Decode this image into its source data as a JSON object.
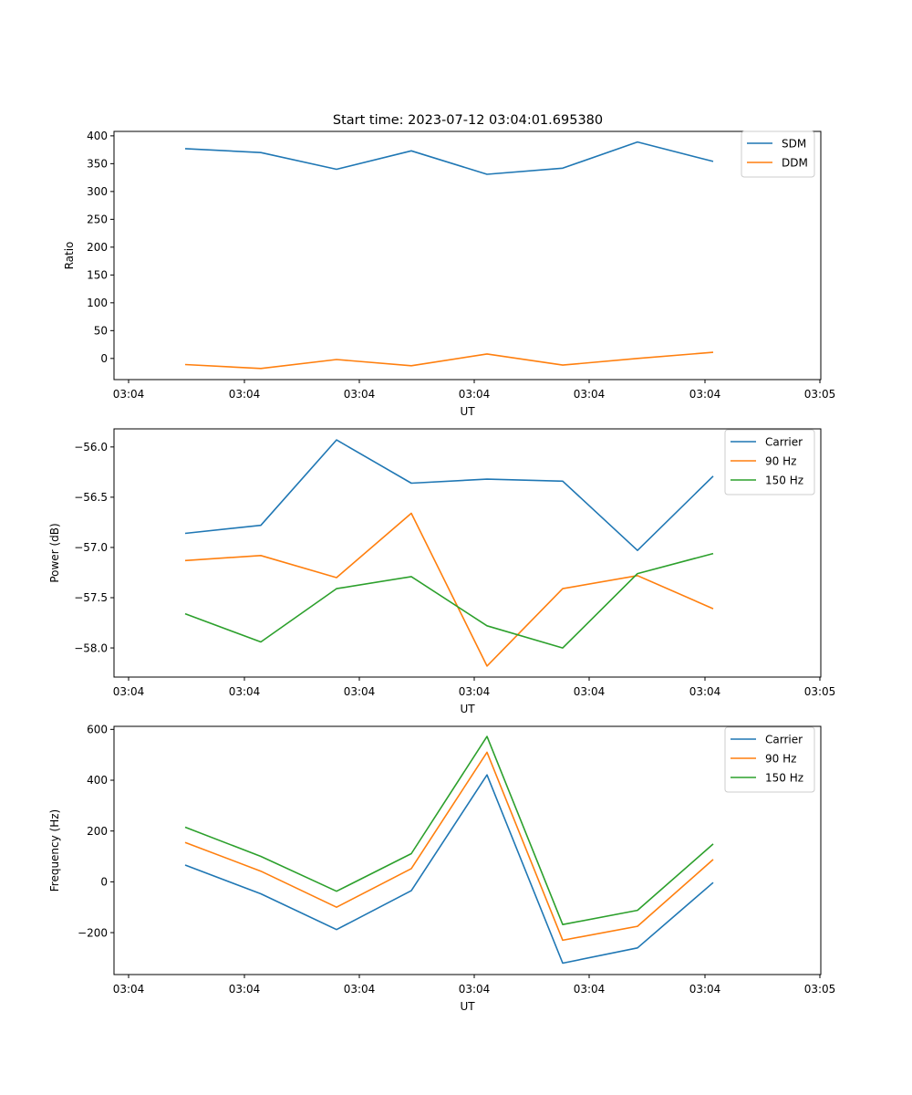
{
  "figure_title": "Start time: 2023-07-12 03:04:01.695380",
  "chart_data": [
    {
      "type": "line",
      "title": "Start time: 2023-07-12 03:04:01.695380",
      "xlabel": "UT",
      "ylabel": "Ratio",
      "x_tick_labels": [
        "03:04",
        "03:04",
        "03:04",
        "03:04",
        "03:04",
        "03:04",
        "03:05"
      ],
      "y_ticks": [
        0,
        50,
        100,
        150,
        200,
        250,
        300,
        350,
        400
      ],
      "y_tick_labels": [
        "0",
        "50",
        "100",
        "150",
        "200",
        "250",
        "300",
        "350",
        "400"
      ],
      "ylim": [
        -38,
        408
      ],
      "x_index_range": [
        -0.75,
        8.5
      ],
      "legend": "top-right",
      "grid": false,
      "series": [
        {
          "name": "SDM",
          "color": "#1f77b4",
          "values": [
            377,
            370,
            340,
            373,
            331,
            342,
            389,
            354
          ]
        },
        {
          "name": "DDM",
          "color": "#ff7f0e",
          "values": [
            -11,
            -18,
            -2,
            -13,
            8,
            -12,
            0,
            11
          ]
        }
      ]
    },
    {
      "type": "line",
      "title": "",
      "xlabel": "UT",
      "ylabel": "Power (dB)",
      "x_tick_labels": [
        "03:04",
        "03:04",
        "03:04",
        "03:04",
        "03:04",
        "03:04",
        "03:05"
      ],
      "y_ticks": [
        -58.0,
        -57.5,
        -57.0,
        -56.5,
        -56.0
      ],
      "y_tick_labels": [
        "−58.0",
        "−57.5",
        "−57.0",
        "−56.5",
        "−56.0"
      ],
      "ylim": [
        -58.29,
        -55.82
      ],
      "x_index_range": [
        -0.75,
        8.5
      ],
      "legend": "top-right",
      "grid": false,
      "series": [
        {
          "name": "Carrier",
          "color": "#1f77b4",
          "values": [
            -56.86,
            -56.78,
            -55.93,
            -56.36,
            -56.32,
            -56.34,
            -57.03,
            -56.29
          ]
        },
        {
          "name": "90 Hz",
          "color": "#ff7f0e",
          "values": [
            -57.13,
            -57.08,
            -57.3,
            -56.66,
            -58.18,
            -57.41,
            -57.28,
            -57.61
          ]
        },
        {
          "name": "150 Hz",
          "color": "#2ca02c",
          "values": [
            -57.66,
            -57.94,
            -57.41,
            -57.29,
            -57.78,
            -58.0,
            -57.26,
            -57.06
          ]
        }
      ]
    },
    {
      "type": "line",
      "title": "",
      "xlabel": "UT",
      "ylabel": "Frequency (Hz)",
      "x_tick_labels": [
        "03:04",
        "03:04",
        "03:04",
        "03:04",
        "03:04",
        "03:04",
        "03:05"
      ],
      "y_ticks": [
        -200,
        0,
        200,
        400,
        600
      ],
      "y_tick_labels": [
        "−200",
        "0",
        "200",
        "400",
        "600"
      ],
      "ylim": [
        -365,
        612
      ],
      "x_index_range": [
        -0.75,
        8.5
      ],
      "legend": "top-right",
      "grid": false,
      "series": [
        {
          "name": "Carrier",
          "color": "#1f77b4",
          "values": [
            66,
            -47,
            -188,
            -35,
            421,
            -320,
            -260,
            -3
          ]
        },
        {
          "name": "90 Hz",
          "color": "#ff7f0e",
          "values": [
            155,
            42,
            -100,
            52,
            510,
            -230,
            -175,
            88
          ]
        },
        {
          "name": "150 Hz",
          "color": "#2ca02c",
          "values": [
            215,
            100,
            -37,
            111,
            572,
            -168,
            -112,
            149
          ]
        }
      ]
    }
  ]
}
